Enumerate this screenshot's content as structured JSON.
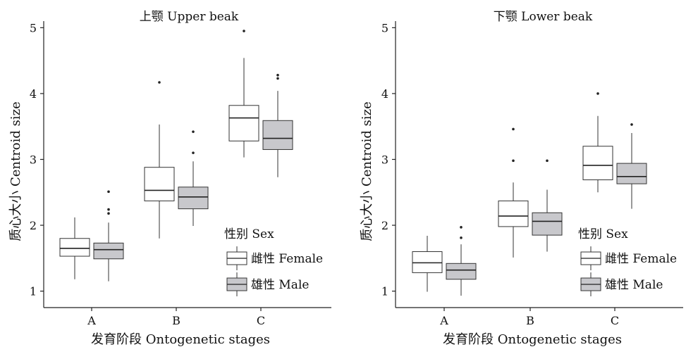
{
  "figure": {
    "x_title": "发育阶段 Ontogenetic stages",
    "y_title": "质心大小 Centroid size",
    "legend_title": "性别 Sex",
    "legend_items": [
      {
        "label": "雌性 Female",
        "fill": "#ffffff"
      },
      {
        "label": "雄性 Male",
        "fill": "#c8c8cc"
      }
    ]
  },
  "chart_data": [
    {
      "type": "boxplot",
      "title": "上颚 Upper beak",
      "xlabel": "发育阶段 Ontogenetic stages",
      "ylabel": "质心大小 Centroid size",
      "categories": [
        "A",
        "B",
        "C"
      ],
      "ylim": [
        0.75,
        5.1
      ],
      "yticks": [
        1,
        2,
        3,
        4,
        5
      ],
      "grid": false,
      "legend_position": "bottom-right",
      "series": [
        {
          "name": "雌性 Female",
          "color": "#ffffff",
          "boxes": [
            {
              "min": 1.18,
              "q1": 1.53,
              "median": 1.65,
              "q3": 1.8,
              "max": 2.12,
              "outliers": []
            },
            {
              "min": 1.8,
              "q1": 2.37,
              "median": 2.53,
              "q3": 2.88,
              "max": 3.53,
              "outliers": [
                4.17
              ]
            },
            {
              "min": 3.03,
              "q1": 3.28,
              "median": 3.63,
              "q3": 3.82,
              "max": 4.54,
              "outliers": [
                4.95
              ]
            }
          ]
        },
        {
          "name": "雄性 Male",
          "color": "#c8c8cc",
          "boxes": [
            {
              "min": 1.15,
              "q1": 1.49,
              "median": 1.63,
              "q3": 1.73,
              "max": 2.04,
              "outliers": [
                2.18,
                2.24,
                2.51
              ]
            },
            {
              "min": 1.99,
              "q1": 2.25,
              "median": 2.43,
              "q3": 2.58,
              "max": 2.97,
              "outliers": [
                3.1,
                3.42
              ]
            },
            {
              "min": 2.73,
              "q1": 3.15,
              "median": 3.32,
              "q3": 3.59,
              "max": 4.04,
              "outliers": [
                4.23,
                4.28
              ]
            }
          ]
        }
      ]
    },
    {
      "type": "boxplot",
      "title": "下颚 Lower beak",
      "xlabel": "发育阶段 Ontogenetic stages",
      "ylabel": "质心大小 Centroid size",
      "categories": [
        "A",
        "B",
        "C"
      ],
      "ylim": [
        0.75,
        5.1
      ],
      "yticks": [
        1,
        2,
        3,
        4,
        5
      ],
      "grid": false,
      "legend_position": "bottom-right",
      "series": [
        {
          "name": "雌性 Female",
          "color": "#ffffff",
          "boxes": [
            {
              "min": 0.99,
              "q1": 1.28,
              "median": 1.43,
              "q3": 1.6,
              "max": 1.84,
              "outliers": []
            },
            {
              "min": 1.51,
              "q1": 1.98,
              "median": 2.14,
              "q3": 2.37,
              "max": 2.65,
              "outliers": [
                2.98,
                3.46
              ]
            },
            {
              "min": 2.5,
              "q1": 2.69,
              "median": 2.91,
              "q3": 3.2,
              "max": 3.66,
              "outliers": [
                4.0
              ]
            }
          ]
        },
        {
          "name": "雄性 Male",
          "color": "#c8c8cc",
          "boxes": [
            {
              "min": 0.93,
              "q1": 1.18,
              "median": 1.32,
              "q3": 1.42,
              "max": 1.71,
              "outliers": [
                1.81,
                1.97
              ]
            },
            {
              "min": 1.6,
              "q1": 1.85,
              "median": 2.06,
              "q3": 2.19,
              "max": 2.54,
              "outliers": [
                2.98
              ]
            },
            {
              "min": 2.25,
              "q1": 2.63,
              "median": 2.74,
              "q3": 2.94,
              "max": 3.4,
              "outliers": [
                3.53
              ]
            }
          ]
        }
      ]
    }
  ]
}
